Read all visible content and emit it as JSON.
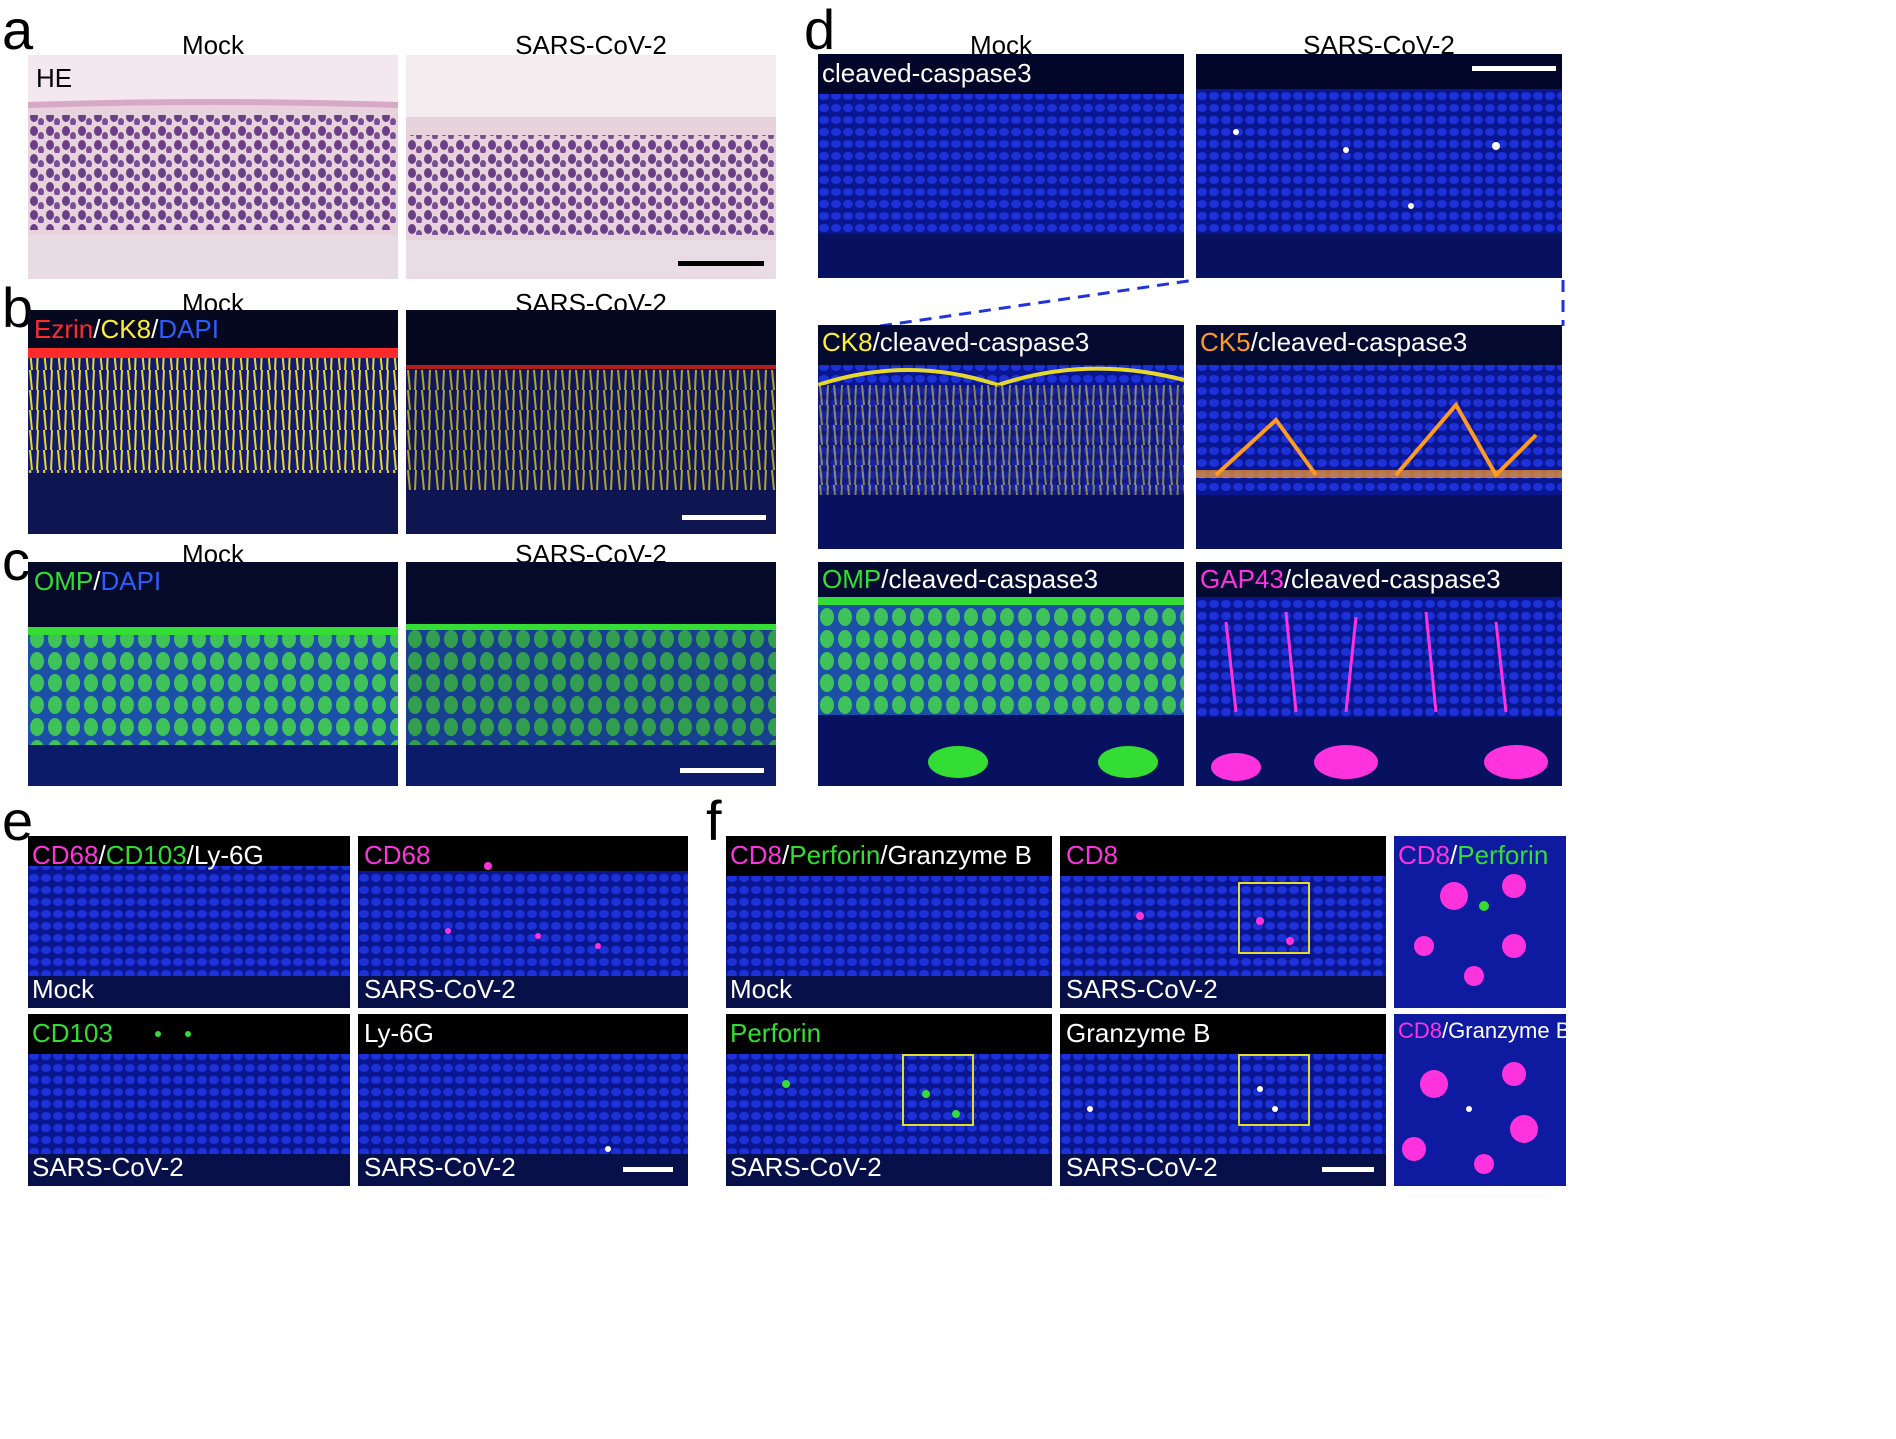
{
  "panels": {
    "a": {
      "letter": "a",
      "col_left": "Mock",
      "col_right": "SARS-CoV-2",
      "label": "HE"
    },
    "b": {
      "letter": "b",
      "col_left": "Mock",
      "col_right": "SARS-CoV-2",
      "label": {
        "p1": "Ezrin",
        "s1": "/",
        "p2": "CK8",
        "s2": "/",
        "p3": "DAPI"
      }
    },
    "c": {
      "letter": "c",
      "col_left": "Mock",
      "col_right": "SARS-CoV-2",
      "label": {
        "p1": "OMP",
        "s1": "/",
        "p2": "DAPI"
      }
    },
    "d": {
      "letter": "d",
      "col_left": "Mock",
      "col_right": "SARS-CoV-2",
      "top_label": "cleaved-caspase3",
      "ck8": {
        "marker": "CK8",
        "rest": "/cleaved-caspase3"
      },
      "ck5": {
        "marker": "CK5",
        "rest": "/cleaved-caspase3"
      },
      "omp": {
        "marker": "OMP",
        "rest": "/cleaved-caspase3"
      },
      "gap43": {
        "marker": "GAP43",
        "rest": "/cleaved-caspase3"
      }
    },
    "e": {
      "letter": "e",
      "tl": {
        "m1": "CD68",
        "s1": "/",
        "m2": "CD103",
        "s2": "/",
        "m3": "Ly-6G",
        "bottom": "Mock"
      },
      "tr": {
        "m1": "CD68",
        "bottom": "SARS-CoV-2"
      },
      "bl": {
        "m1": "CD103",
        "bottom": "SARS-CoV-2"
      },
      "br": {
        "m1": "Ly-6G",
        "bottom": "SARS-CoV-2"
      }
    },
    "f": {
      "letter": "f",
      "tl": {
        "m1": "CD8",
        "s1": "/",
        "m2": "Perforin",
        "s2": "/",
        "m3": "Granzyme B",
        "bottom": "Mock"
      },
      "tm": {
        "m1": "CD8",
        "bottom": "SARS-CoV-2"
      },
      "tr": {
        "m1": "CD8",
        "s1": "/",
        "m2": "Perforin"
      },
      "bl": {
        "m1": "Perforin",
        "bottom": "SARS-CoV-2"
      },
      "bm": {
        "m1": "Granzyme B",
        "bottom": "SARS-CoV-2"
      },
      "br": {
        "m1": "CD8",
        "s1": "/",
        "m2": "Granzyme B"
      }
    }
  },
  "colors": {
    "red": "#ff2a2a",
    "yellow": "#ffee33",
    "blue": "#2b5dff",
    "green": "#33dd33",
    "magenta": "#ff33dd",
    "orange": "#ff9a22",
    "white": "#ffffff",
    "dapi_bg": "#1a2ccc",
    "he_bg": "#e8d2dc",
    "he_nuclei": "#6a3f86",
    "box": "#e3dc2c"
  }
}
